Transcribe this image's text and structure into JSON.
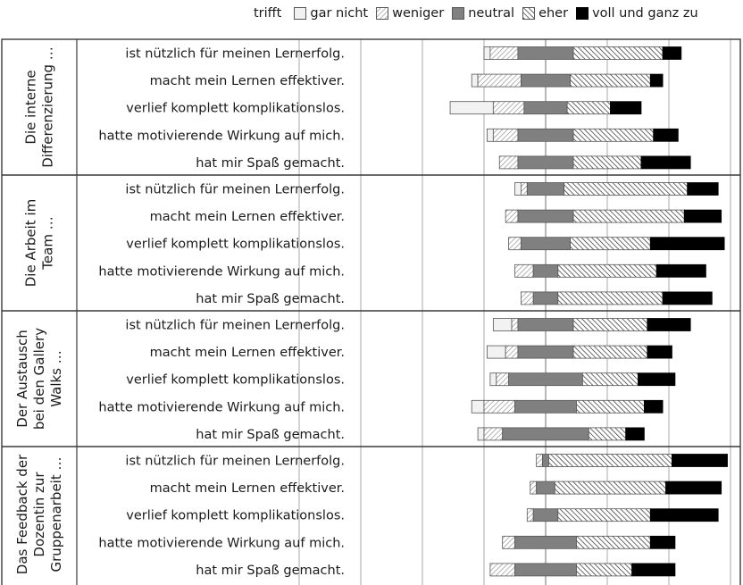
{
  "chart_data": {
    "type": "bar",
    "stacked": "diverging",
    "legend_title": "trifft",
    "legend_position": "top",
    "grid": true,
    "categories": [
      "gar nicht",
      "weniger",
      "neutral",
      "eher",
      "voll und ganz zu"
    ],
    "styles": {
      "gar nicht": "#f0f0f0",
      "weniger": "hatch-light",
      "neutral": "#808080",
      "eher": "hatch-dark",
      "voll und ganz zu": "#000000"
    },
    "x_unit": "%",
    "xlim": [
      -100,
      100
    ],
    "xticks": [
      -80,
      -60,
      -40,
      -20,
      0,
      20,
      40,
      60
    ],
    "groups": [
      {
        "title": "Die interne Differenzierung …",
        "title_lines": [
          "Die interne",
          "Differenzierung …"
        ],
        "rows": [
          {
            "label": "ist nützlich für meinen Lernerfolg.",
            "values": [
              2,
              9,
              18,
              29,
              6
            ]
          },
          {
            "label": "macht mein Lernen effektiver.",
            "values": [
              2,
              14,
              16,
              26,
              4
            ]
          },
          {
            "label": "verlief komplett komplikationslos.",
            "values": [
              14,
              10,
              14,
              14,
              10
            ]
          },
          {
            "label": "hatte motivierende Wirkung auf mich.",
            "values": [
              2,
              8,
              18,
              26,
              8
            ]
          },
          {
            "label": "hat mir Spaß gemacht.",
            "values": [
              0,
              6,
              18,
              22,
              16
            ]
          }
        ]
      },
      {
        "title": "Die Arbeit im Team …",
        "title_lines": [
          "Die Arbeit im",
          "Team …"
        ],
        "rows": [
          {
            "label": "ist nützlich für meinen Lernerfolg.",
            "values": [
              2,
              2,
              12,
              40,
              10
            ]
          },
          {
            "label": "macht mein Lernen effektiver.",
            "values": [
              0,
              4,
              18,
              36,
              12
            ]
          },
          {
            "label": "verlief komplett komplikationslos.",
            "values": [
              0,
              4,
              16,
              26,
              24
            ]
          },
          {
            "label": "hatte motivierende Wirkung auf mich.",
            "values": [
              0,
              6,
              8,
              32,
              16
            ]
          },
          {
            "label": "hat mir Spaß gemacht.",
            "values": [
              0,
              4,
              8,
              34,
              16
            ]
          }
        ]
      },
      {
        "title": "Der Austausch bei den Gallery Walks …",
        "title_lines": [
          "Der Austausch",
          "bei den Gallery",
          "Walks …"
        ],
        "rows": [
          {
            "label": "ist nützlich für meinen Lernerfolg.",
            "values": [
              6,
              2,
              18,
              24,
              14
            ]
          },
          {
            "label": "macht mein Lernen effektiver.",
            "values": [
              6,
              4,
              18,
              24,
              8
            ]
          },
          {
            "label": "verlief komplett komplikationslos.",
            "values": [
              2,
              4,
              24,
              18,
              12
            ]
          },
          {
            "label": "hatte motivierende Wirkung auf mich.",
            "values": [
              4,
              10,
              20,
              22,
              6
            ]
          },
          {
            "label": "hat mir Spaß gemacht.",
            "values": [
              2,
              6,
              28,
              12,
              6
            ]
          }
        ]
      },
      {
        "title": "Das Feedback der Dozentin zur Gruppenarbeit …",
        "title_lines": [
          "Das Feedback der",
          "Dozentin zur",
          "Gruppenarbeit …"
        ],
        "rows": [
          {
            "label": "ist nützlich für meinen Lernerfolg.",
            "values": [
              0,
              2,
              2,
              40,
              18
            ]
          },
          {
            "label": "macht mein Lernen effektiver.",
            "values": [
              0,
              2,
              6,
              36,
              18
            ]
          },
          {
            "label": "verlief komplett komplikationslos.",
            "values": [
              0,
              2,
              8,
              30,
              22
            ]
          },
          {
            "label": "hatte motivierende Wirkung auf mich.",
            "values": [
              0,
              4,
              20,
              24,
              8
            ]
          },
          {
            "label": "hat mir Spaß gemacht.",
            "values": [
              0,
              8,
              20,
              18,
              14
            ]
          }
        ]
      }
    ]
  }
}
